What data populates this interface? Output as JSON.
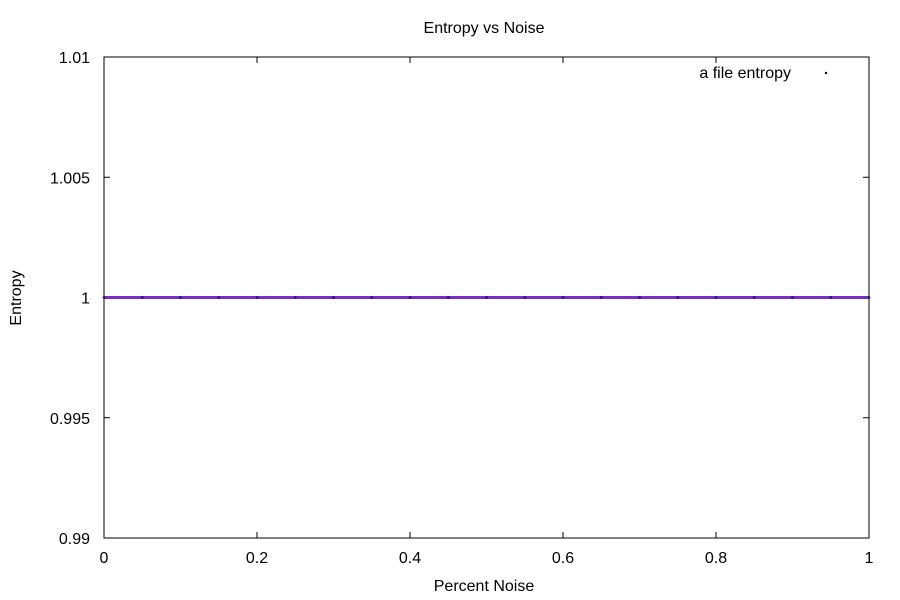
{
  "chart_data": {
    "type": "scatter",
    "title": "Entropy vs Noise",
    "xlabel": "Percent Noise",
    "ylabel": "Entropy",
    "xlim": [
      0,
      1
    ],
    "ylim": [
      0.99,
      1.01
    ],
    "x_ticks": [
      0,
      0.2,
      0.4,
      0.6,
      0.8,
      1
    ],
    "x_tick_labels": [
      "0",
      "0.2",
      "0.4",
      "0.6",
      "0.8",
      "1"
    ],
    "y_ticks": [
      0.99,
      0.995,
      1,
      1.005,
      1.01
    ],
    "y_tick_labels": [
      "0.99",
      "0.995",
      "1",
      "1.005",
      "1.01"
    ],
    "grid": false,
    "legend_position": "top-right",
    "series": [
      {
        "name": "a file entropy",
        "color": "#7b2fbf",
        "marker": "dot",
        "x": [
          0,
          0.05,
          0.1,
          0.15,
          0.2,
          0.25,
          0.3,
          0.35,
          0.4,
          0.45,
          0.5,
          0.55,
          0.6,
          0.65,
          0.7,
          0.75,
          0.8,
          0.85,
          0.9,
          0.95,
          1
        ],
        "y": [
          1,
          1,
          1,
          1,
          1,
          1,
          1,
          1,
          1,
          1,
          1,
          1,
          1,
          1,
          1,
          1,
          1,
          1,
          1,
          1,
          1
        ]
      }
    ]
  }
}
